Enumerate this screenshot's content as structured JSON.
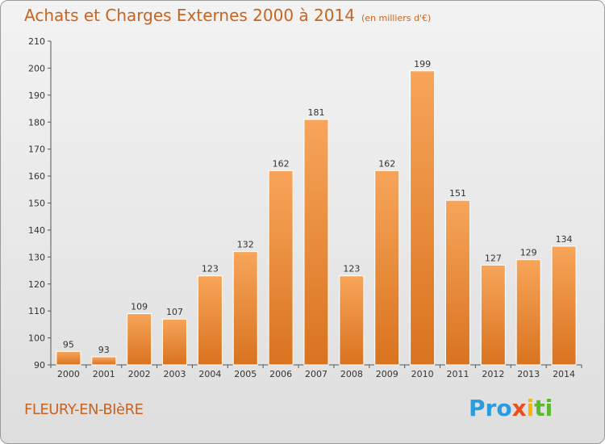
{
  "header": {
    "title": "Achats et Charges Externes 2000 à 2014",
    "subtitle": "(en milliers d'€)"
  },
  "footer": {
    "place": "FLEURY-EN-BIèRE",
    "logo": "Proxiti"
  },
  "colors": {
    "bar_light": "#f7a55a",
    "bar_dark": "#d9731f",
    "accent": "#c8641f"
  },
  "chart_data": {
    "type": "bar",
    "categories": [
      "2000",
      "2001",
      "2002",
      "2003",
      "2004",
      "2005",
      "2006",
      "2007",
      "2008",
      "2009",
      "2010",
      "2011",
      "2012",
      "2013",
      "2014"
    ],
    "values": [
      95,
      93,
      109,
      107,
      123,
      132,
      162,
      181,
      123,
      162,
      199,
      151,
      127,
      129,
      134
    ],
    "ylim": [
      90,
      210
    ],
    "yticks": [
      90,
      100,
      110,
      120,
      130,
      140,
      150,
      160,
      170,
      180,
      190,
      200,
      210
    ],
    "grid": false,
    "legend": "none"
  }
}
